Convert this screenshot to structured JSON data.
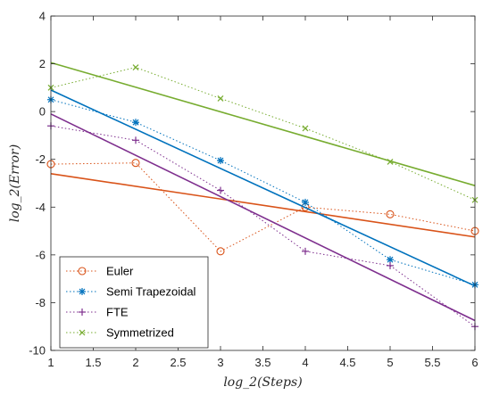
{
  "chart_data": {
    "type": "line",
    "title": "",
    "xlabel": "log_2(Steps)",
    "ylabel": "log_2(Error)",
    "xlim": [
      1,
      6
    ],
    "ylim": [
      -10,
      4
    ],
    "xticks": [
      1,
      1.5,
      2,
      2.5,
      3,
      3.5,
      4,
      4.5,
      5,
      5.5,
      6
    ],
    "xtick_labels": [
      "1",
      "1.5",
      "2",
      "2.5",
      "3",
      "3.5",
      "4",
      "4.5",
      "5",
      "5.5",
      "6"
    ],
    "yticks": [
      -10,
      -8,
      -6,
      -4,
      -2,
      0,
      2,
      4
    ],
    "ytick_labels": [
      "-10",
      "-8",
      "-6",
      "-4",
      "-2",
      "0",
      "2",
      "4"
    ],
    "grid": false,
    "legend_position": "bottom-left",
    "series": [
      {
        "name": "Euler",
        "color": "#D95319",
        "marker": "circle",
        "x": [
          1,
          2,
          3,
          4,
          5,
          6
        ],
        "y": [
          -2.2,
          -2.15,
          -5.85,
          -4.0,
          -4.3,
          -5.0
        ],
        "fit": [
          [
            1,
            -2.6
          ],
          [
            6,
            -5.25
          ]
        ]
      },
      {
        "name": "Semi Trapezoidal",
        "color": "#0072BD",
        "marker": "asterisk",
        "x": [
          1,
          2,
          3,
          4,
          5,
          6
        ],
        "y": [
          0.5,
          -0.45,
          -2.05,
          -3.8,
          -6.2,
          -7.25
        ],
        "fit": [
          [
            1,
            0.9
          ],
          [
            6,
            -7.3
          ]
        ]
      },
      {
        "name": "FTE",
        "color": "#7E2F8E",
        "marker": "plus",
        "x": [
          1,
          2,
          3,
          4,
          5,
          6
        ],
        "y": [
          -0.6,
          -1.2,
          -3.3,
          -5.85,
          -6.45,
          -9.0
        ],
        "fit": [
          [
            1,
            -0.1
          ],
          [
            6,
            -8.75
          ]
        ]
      },
      {
        "name": "Symmetrized",
        "color": "#77AC30",
        "marker": "x",
        "x": [
          1,
          2,
          3,
          4,
          5,
          6
        ],
        "y": [
          1.0,
          1.85,
          0.55,
          -0.7,
          -2.1,
          -3.7
        ],
        "fit": [
          [
            1,
            2.05
          ],
          [
            6,
            -3.1
          ]
        ]
      }
    ]
  }
}
